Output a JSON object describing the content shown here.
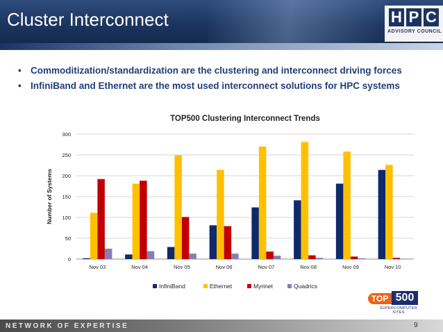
{
  "slide": {
    "title": "Cluster Interconnect",
    "bullets": [
      "Commoditization/standardization are the clustering and interconnect driving forces",
      "InfiniBand and Ethernet are the most used interconnect solutions for HPC systems"
    ],
    "logo": {
      "letters": [
        "H",
        "P",
        "C"
      ],
      "subtitle": "ADVISORY COUNCIL"
    },
    "top500_logo": {
      "top": "TOP",
      "num": "500",
      "sub": "SUPERCOMPUTER SITES"
    },
    "footer": "NETWORK OF EXPERTISE",
    "page_number": "9",
    "colors": {
      "header": "#1c3560",
      "bullet_text": "#1f3d7a"
    }
  },
  "chart_data": {
    "type": "bar",
    "title": "TOP500 Clustering Interconnect Trends",
    "xlabel": "",
    "ylabel": "Number of Systems",
    "ylim": [
      0,
      300
    ],
    "yticks": [
      0,
      50,
      100,
      150,
      200,
      250,
      300
    ],
    "grid": true,
    "legend_position": "bottom",
    "categories": [
      "Nov 03",
      "Nov 04",
      "Nov 05",
      "Nov 06",
      "Nov 07",
      "Nov 08",
      "Nov 09",
      "Nov 10"
    ],
    "series": [
      {
        "name": "InfiniBand",
        "color": "#0e2a6b",
        "values": [
          2,
          11,
          29,
          81,
          124,
          141,
          181,
          214
        ]
      },
      {
        "name": "Ethernet",
        "color": "#ffc000",
        "values": [
          111,
          181,
          249,
          214,
          270,
          281,
          258,
          226
        ]
      },
      {
        "name": "Myrinet",
        "color": "#c00000",
        "values": [
          192,
          188,
          101,
          79,
          18,
          9,
          6,
          3
        ]
      },
      {
        "name": "Quadrics",
        "color": "#8b7bb5",
        "values": [
          25,
          19,
          13,
          13,
          8,
          3,
          2,
          1
        ]
      }
    ]
  }
}
